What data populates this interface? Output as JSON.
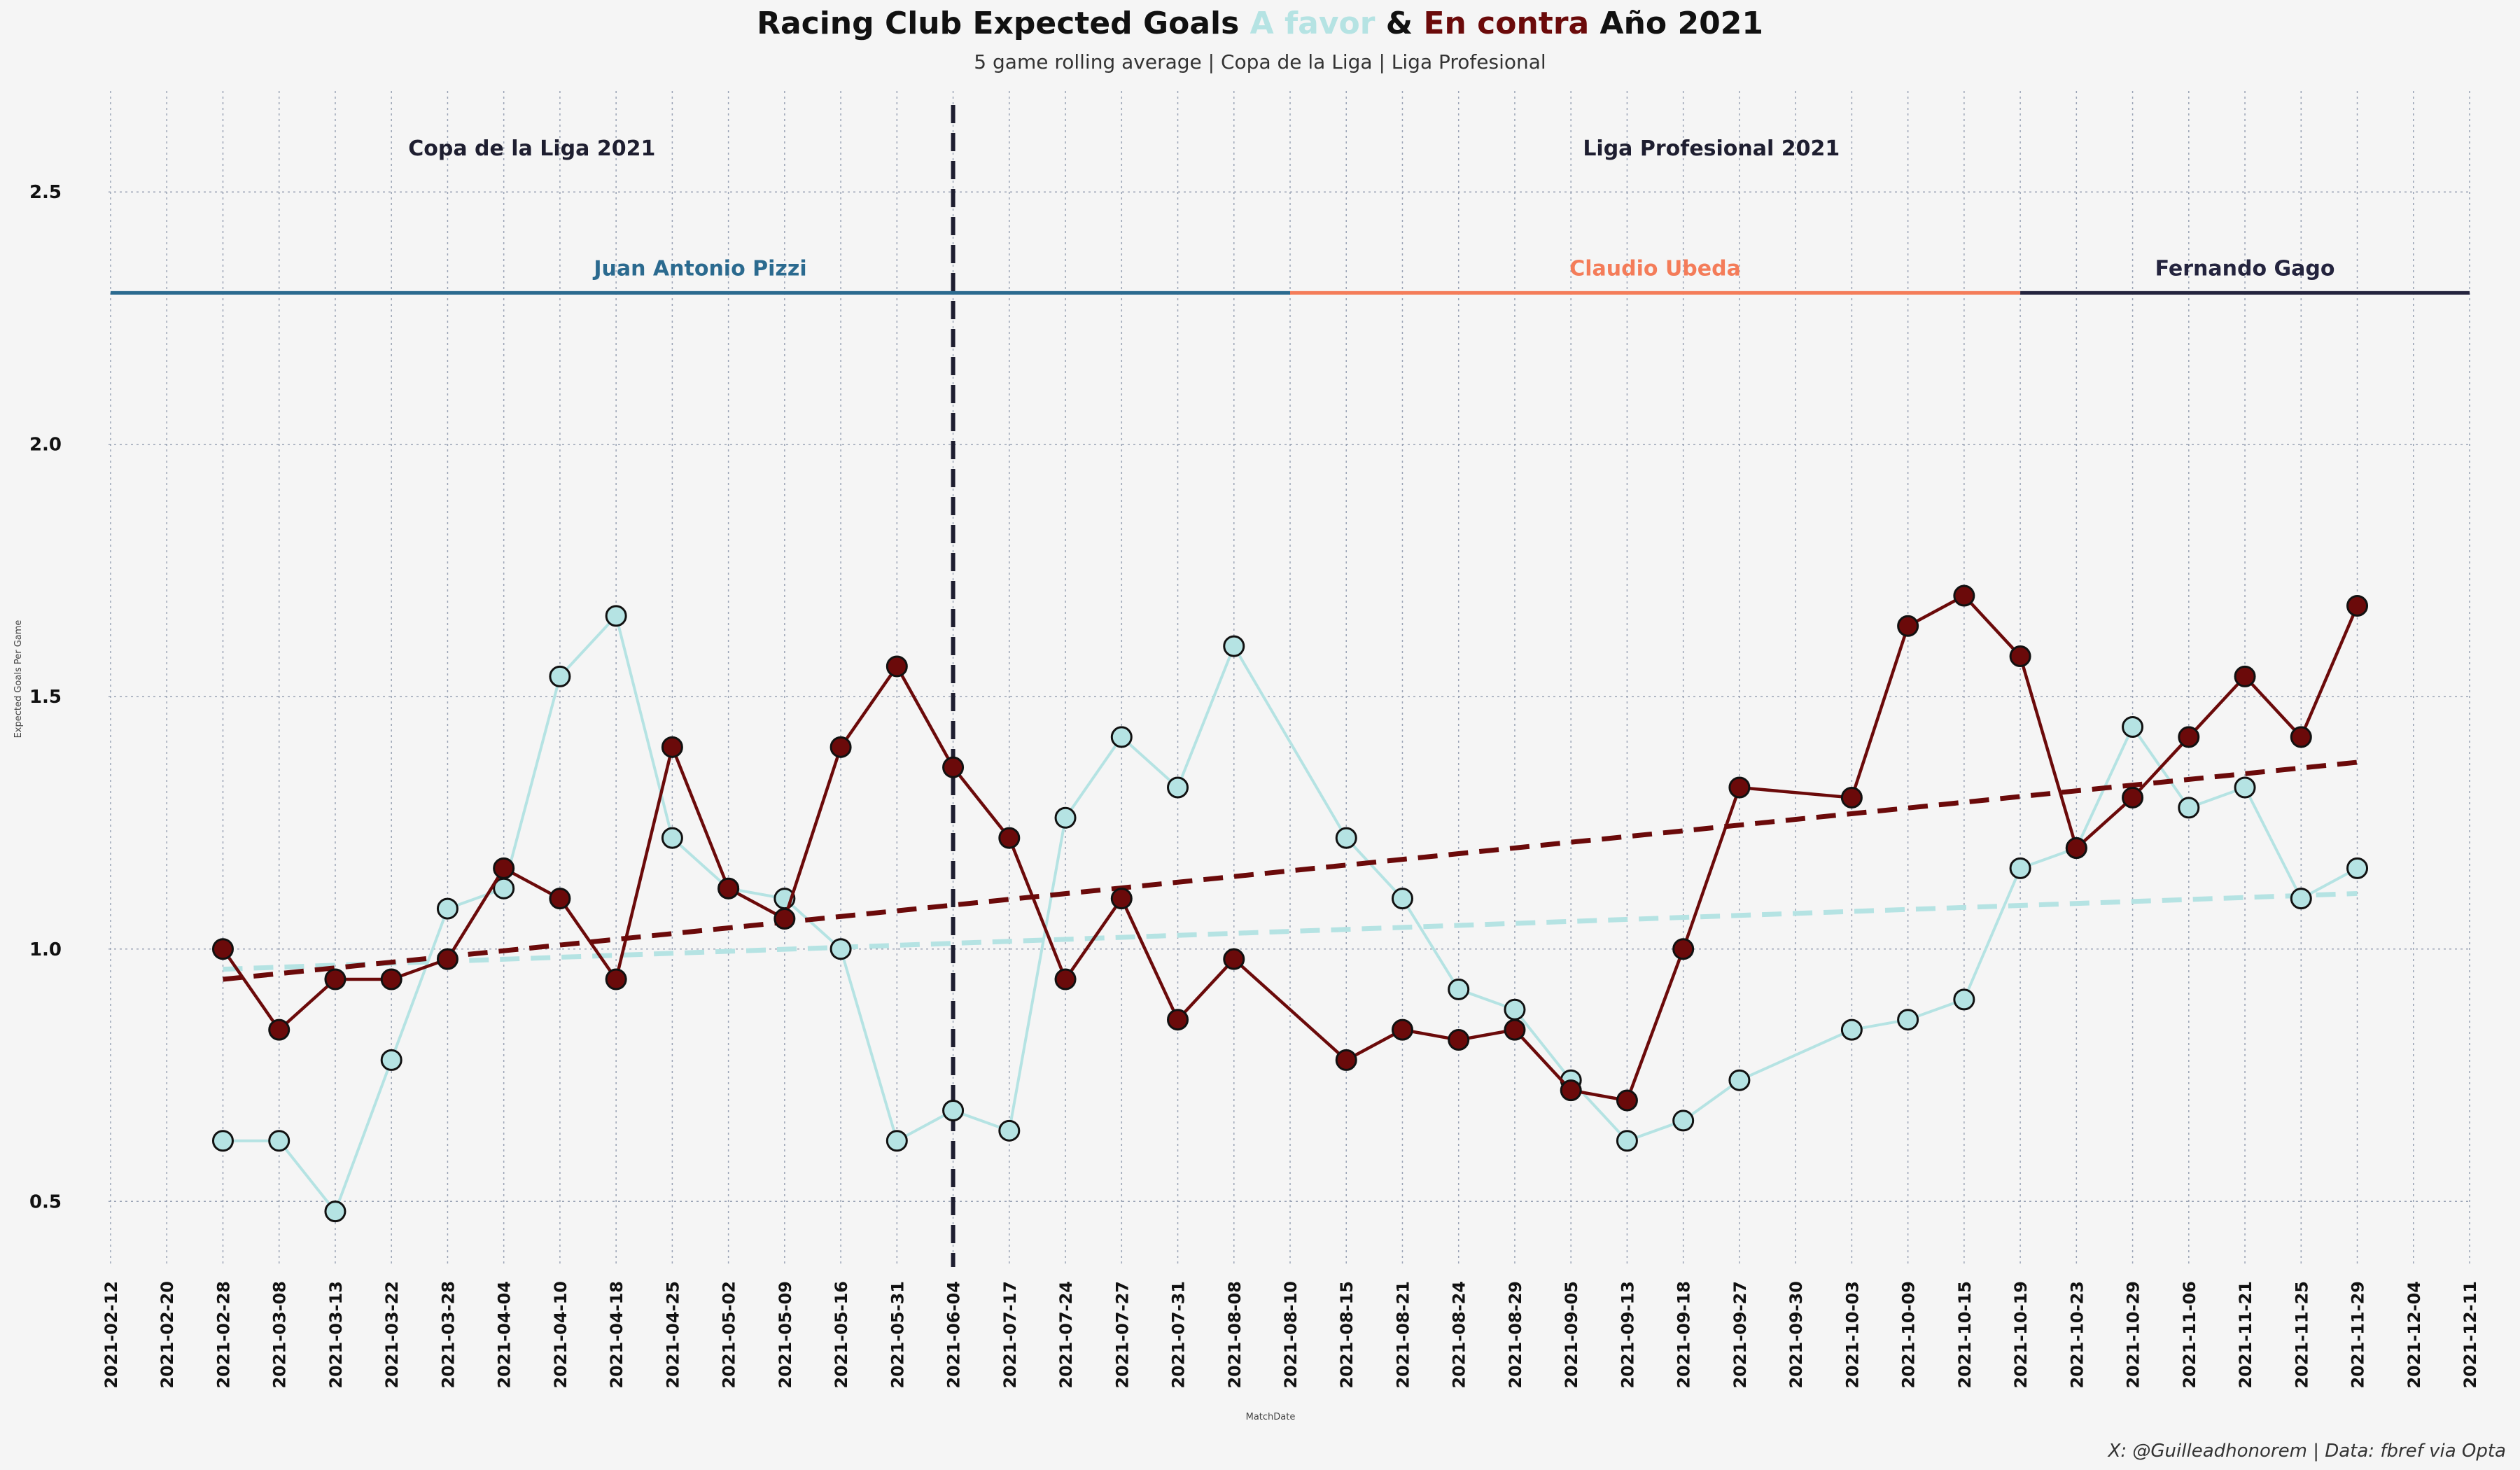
{
  "header": {
    "title_parts": [
      {
        "text": "Racing Club Expected Goals ",
        "color": "#111111"
      },
      {
        "text": "A favor",
        "color": "#b5e3e3"
      },
      {
        "text": " & ",
        "color": "#111111"
      },
      {
        "text": "En contra",
        "color": "#6b0a0a"
      },
      {
        "text": " Año 2021",
        "color": "#111111"
      }
    ],
    "subtitle": "5 game rolling average | Copa de la Liga | Liga Profesional"
  },
  "footer": "X: @Guilleadhonorem | Data: fbref via Opta",
  "colors": {
    "favor": "#b5e3e3",
    "contra": "#6b0a0a",
    "pizzi": "#2b6a8f",
    "ubeda": "#f47c59",
    "gago": "#24243e",
    "split": "#1e1e30",
    "grid": "#9aa3b5"
  },
  "chart_data": {
    "type": "line",
    "xlabel": "MatchDate",
    "ylabel": "Expected Goals Per Game",
    "ylim": [
      0.37,
      2.7
    ],
    "yticks": [
      0.5,
      1.0,
      1.5,
      2.0,
      2.5
    ],
    "grid": true,
    "x_ticks": [
      "2021-02-12",
      "2021-02-20",
      "2021-02-28",
      "2021-03-08",
      "2021-03-13",
      "2021-03-22",
      "2021-03-28",
      "2021-04-04",
      "2021-04-10",
      "2021-04-18",
      "2021-04-25",
      "2021-05-02",
      "2021-05-09",
      "2021-05-16",
      "2021-05-31",
      "2021-06-04",
      "2021-07-17",
      "2021-07-24",
      "2021-07-27",
      "2021-07-31",
      "2021-08-08",
      "2021-08-10",
      "2021-08-15",
      "2021-08-21",
      "2021-08-24",
      "2021-08-29",
      "2021-09-05",
      "2021-09-13",
      "2021-09-18",
      "2021-09-27",
      "2021-09-30",
      "2021-10-03",
      "2021-10-09",
      "2021-10-15",
      "2021-10-19",
      "2021-10-23",
      "2021-10-29",
      "2021-11-06",
      "2021-11-21",
      "2021-11-25",
      "2021-11-29",
      "2021-12-04",
      "2021-12-11"
    ],
    "series": [
      {
        "key": "favor",
        "x": [
          "2021-02-28",
          "2021-03-08",
          "2021-03-13",
          "2021-03-22",
          "2021-03-28",
          "2021-04-04",
          "2021-04-10",
          "2021-04-18",
          "2021-04-25",
          "2021-05-02",
          "2021-05-09",
          "2021-05-16",
          "2021-05-31",
          "2021-06-04",
          "2021-07-17",
          "2021-07-24",
          "2021-07-27",
          "2021-07-31",
          "2021-08-08",
          "2021-08-15",
          "2021-08-21",
          "2021-08-24",
          "2021-08-29",
          "2021-09-05",
          "2021-09-13",
          "2021-09-18",
          "2021-09-27",
          "2021-10-03",
          "2021-10-09",
          "2021-10-15",
          "2021-10-19",
          "2021-10-23",
          "2021-10-29",
          "2021-11-06",
          "2021-11-21",
          "2021-11-25",
          "2021-11-29"
        ],
        "values": [
          0.62,
          0.62,
          0.48,
          0.78,
          1.08,
          1.12,
          1.54,
          1.66,
          1.22,
          1.12,
          1.1,
          1.0,
          0.62,
          0.68,
          0.64,
          1.26,
          1.42,
          1.32,
          1.6,
          1.22,
          1.1,
          0.92,
          0.88,
          0.74,
          0.62,
          0.66,
          0.74,
          0.84,
          0.86,
          0.9,
          1.16,
          1.2,
          1.44,
          1.28,
          1.32,
          1.1,
          1.16
        ],
        "trend": [
          0.96,
          1.11
        ]
      },
      {
        "key": "contra",
        "x": [
          "2021-02-28",
          "2021-03-08",
          "2021-03-13",
          "2021-03-22",
          "2021-03-28",
          "2021-04-04",
          "2021-04-10",
          "2021-04-18",
          "2021-04-25",
          "2021-05-02",
          "2021-05-09",
          "2021-05-16",
          "2021-05-31",
          "2021-06-04",
          "2021-07-17",
          "2021-07-24",
          "2021-07-27",
          "2021-07-31",
          "2021-08-08",
          "2021-08-15",
          "2021-08-21",
          "2021-08-24",
          "2021-08-29",
          "2021-09-05",
          "2021-09-13",
          "2021-09-18",
          "2021-09-27",
          "2021-10-03",
          "2021-10-09",
          "2021-10-15",
          "2021-10-19",
          "2021-10-23",
          "2021-10-29",
          "2021-11-06",
          "2021-11-21",
          "2021-11-25",
          "2021-11-29"
        ],
        "values": [
          1.0,
          0.84,
          0.94,
          0.94,
          0.98,
          1.16,
          1.1,
          0.94,
          1.4,
          1.12,
          1.06,
          1.4,
          1.56,
          1.36,
          1.22,
          0.94,
          1.1,
          0.86,
          0.98,
          0.78,
          0.84,
          0.82,
          0.84,
          0.72,
          0.7,
          1.0,
          1.32,
          1.3,
          1.64,
          1.7,
          1.58,
          1.2,
          1.3,
          1.42,
          1.54,
          1.42,
          1.68
        ],
        "trend": [
          0.94,
          1.37
        ]
      }
    ],
    "split_date": "2021-06-04",
    "sections": [
      {
        "label": "Copa de la Liga 2021",
        "from": "2021-02-12",
        "to": "2021-06-04"
      },
      {
        "label": "Liga Profesional 2021",
        "from": "2021-06-04",
        "to": "2021-12-11"
      }
    ],
    "coaches": [
      {
        "label": "Juan Antonio Pizzi",
        "from": "2021-02-12",
        "to": "2021-08-10",
        "color_key": "pizzi"
      },
      {
        "label": "Claudio Ubeda",
        "from": "2021-08-10",
        "to": "2021-10-19",
        "color_key": "ubeda"
      },
      {
        "label": "Fernando Gago",
        "from": "2021-10-19",
        "to": "2021-12-11",
        "color_key": "gago"
      }
    ],
    "coach_line_y": 2.3
  }
}
